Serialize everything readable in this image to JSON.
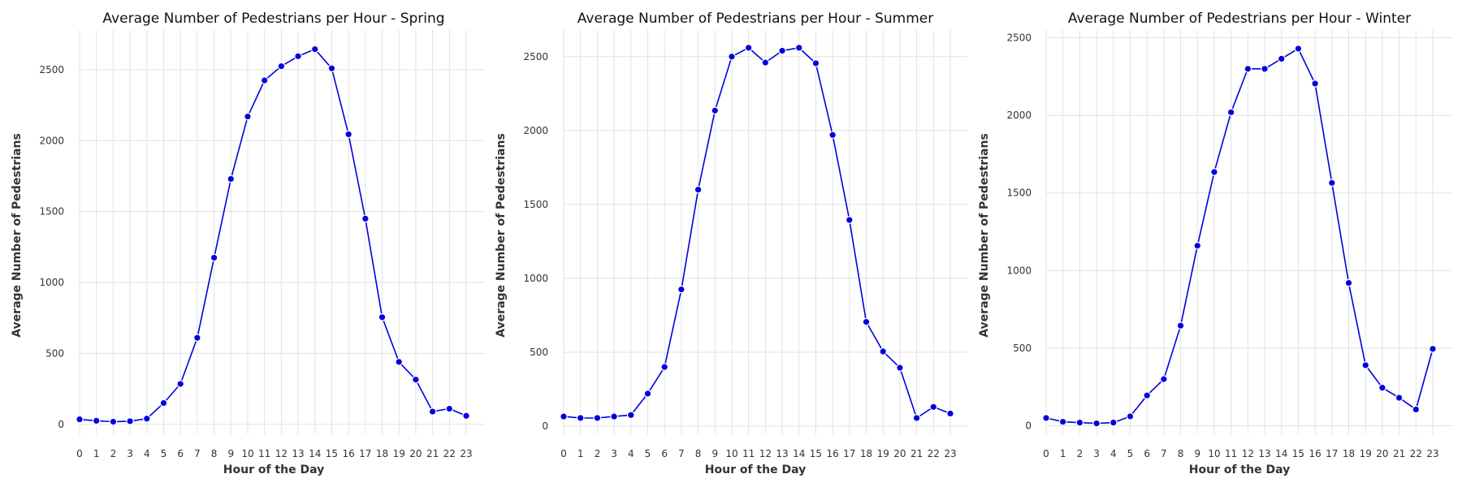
{
  "chart_data": [
    {
      "type": "line",
      "title": "Average Number of Pedestrians per Hour - Spring",
      "xlabel": "Hour of the Day",
      "ylabel": "Average Number of Pedestrians",
      "x": [
        "0",
        "1",
        "2",
        "3",
        "4",
        "5",
        "6",
        "7",
        "8",
        "9",
        "10",
        "11",
        "12",
        "13",
        "14",
        "15",
        "16",
        "17",
        "18",
        "19",
        "20",
        "21",
        "22",
        "23"
      ],
      "values": [
        35,
        25,
        18,
        22,
        40,
        150,
        285,
        610,
        1175,
        1730,
        2170,
        2425,
        2525,
        2595,
        2645,
        2510,
        2045,
        1450,
        755,
        440,
        315,
        90,
        110,
        60
      ],
      "ylim": [
        -70,
        2780
      ],
      "yticks": [
        0,
        500,
        1000,
        1500,
        2000,
        2500
      ],
      "grid": true,
      "line_color": "#0000dd"
    },
    {
      "type": "line",
      "title": "Average Number of Pedestrians per Hour - Summer",
      "xlabel": "Hour of the Day",
      "ylabel": "Average Number of Pedestrians",
      "x": [
        "0",
        "1",
        "2",
        "3",
        "4",
        "5",
        "6",
        "7",
        "8",
        "9",
        "10",
        "11",
        "12",
        "13",
        "14",
        "15",
        "16",
        "17",
        "18",
        "19",
        "20",
        "21",
        "22",
        "23"
      ],
      "values": [
        65,
        55,
        55,
        65,
        75,
        220,
        400,
        925,
        1600,
        2135,
        2500,
        2560,
        2460,
        2540,
        2560,
        2455,
        1970,
        1395,
        705,
        505,
        395,
        55,
        130,
        85
      ],
      "ylim": [
        -55,
        2680
      ],
      "yticks": [
        0,
        500,
        1000,
        1500,
        2000,
        2500
      ],
      "grid": true,
      "line_color": "#0000dd"
    },
    {
      "type": "line",
      "title": "Average Number of Pedestrians per Hour - Winter",
      "xlabel": "Hour of the Day",
      "ylabel": "Average Number of Pedestrians",
      "x": [
        "0",
        "1",
        "2",
        "3",
        "4",
        "5",
        "6",
        "7",
        "8",
        "9",
        "10",
        "11",
        "12",
        "13",
        "14",
        "15",
        "16",
        "17",
        "18",
        "19",
        "20",
        "21",
        "22",
        "23"
      ],
      "values": [
        50,
        25,
        20,
        15,
        20,
        60,
        195,
        300,
        645,
        1160,
        1635,
        2020,
        2300,
        2300,
        2365,
        2430,
        2205,
        1565,
        920,
        390,
        245,
        180,
        105,
        495
      ],
      "ylim": [
        -55,
        2550
      ],
      "yticks": [
        0,
        500,
        1000,
        1500,
        2000,
        2500
      ],
      "grid": true,
      "line_color": "#0000dd"
    }
  ]
}
